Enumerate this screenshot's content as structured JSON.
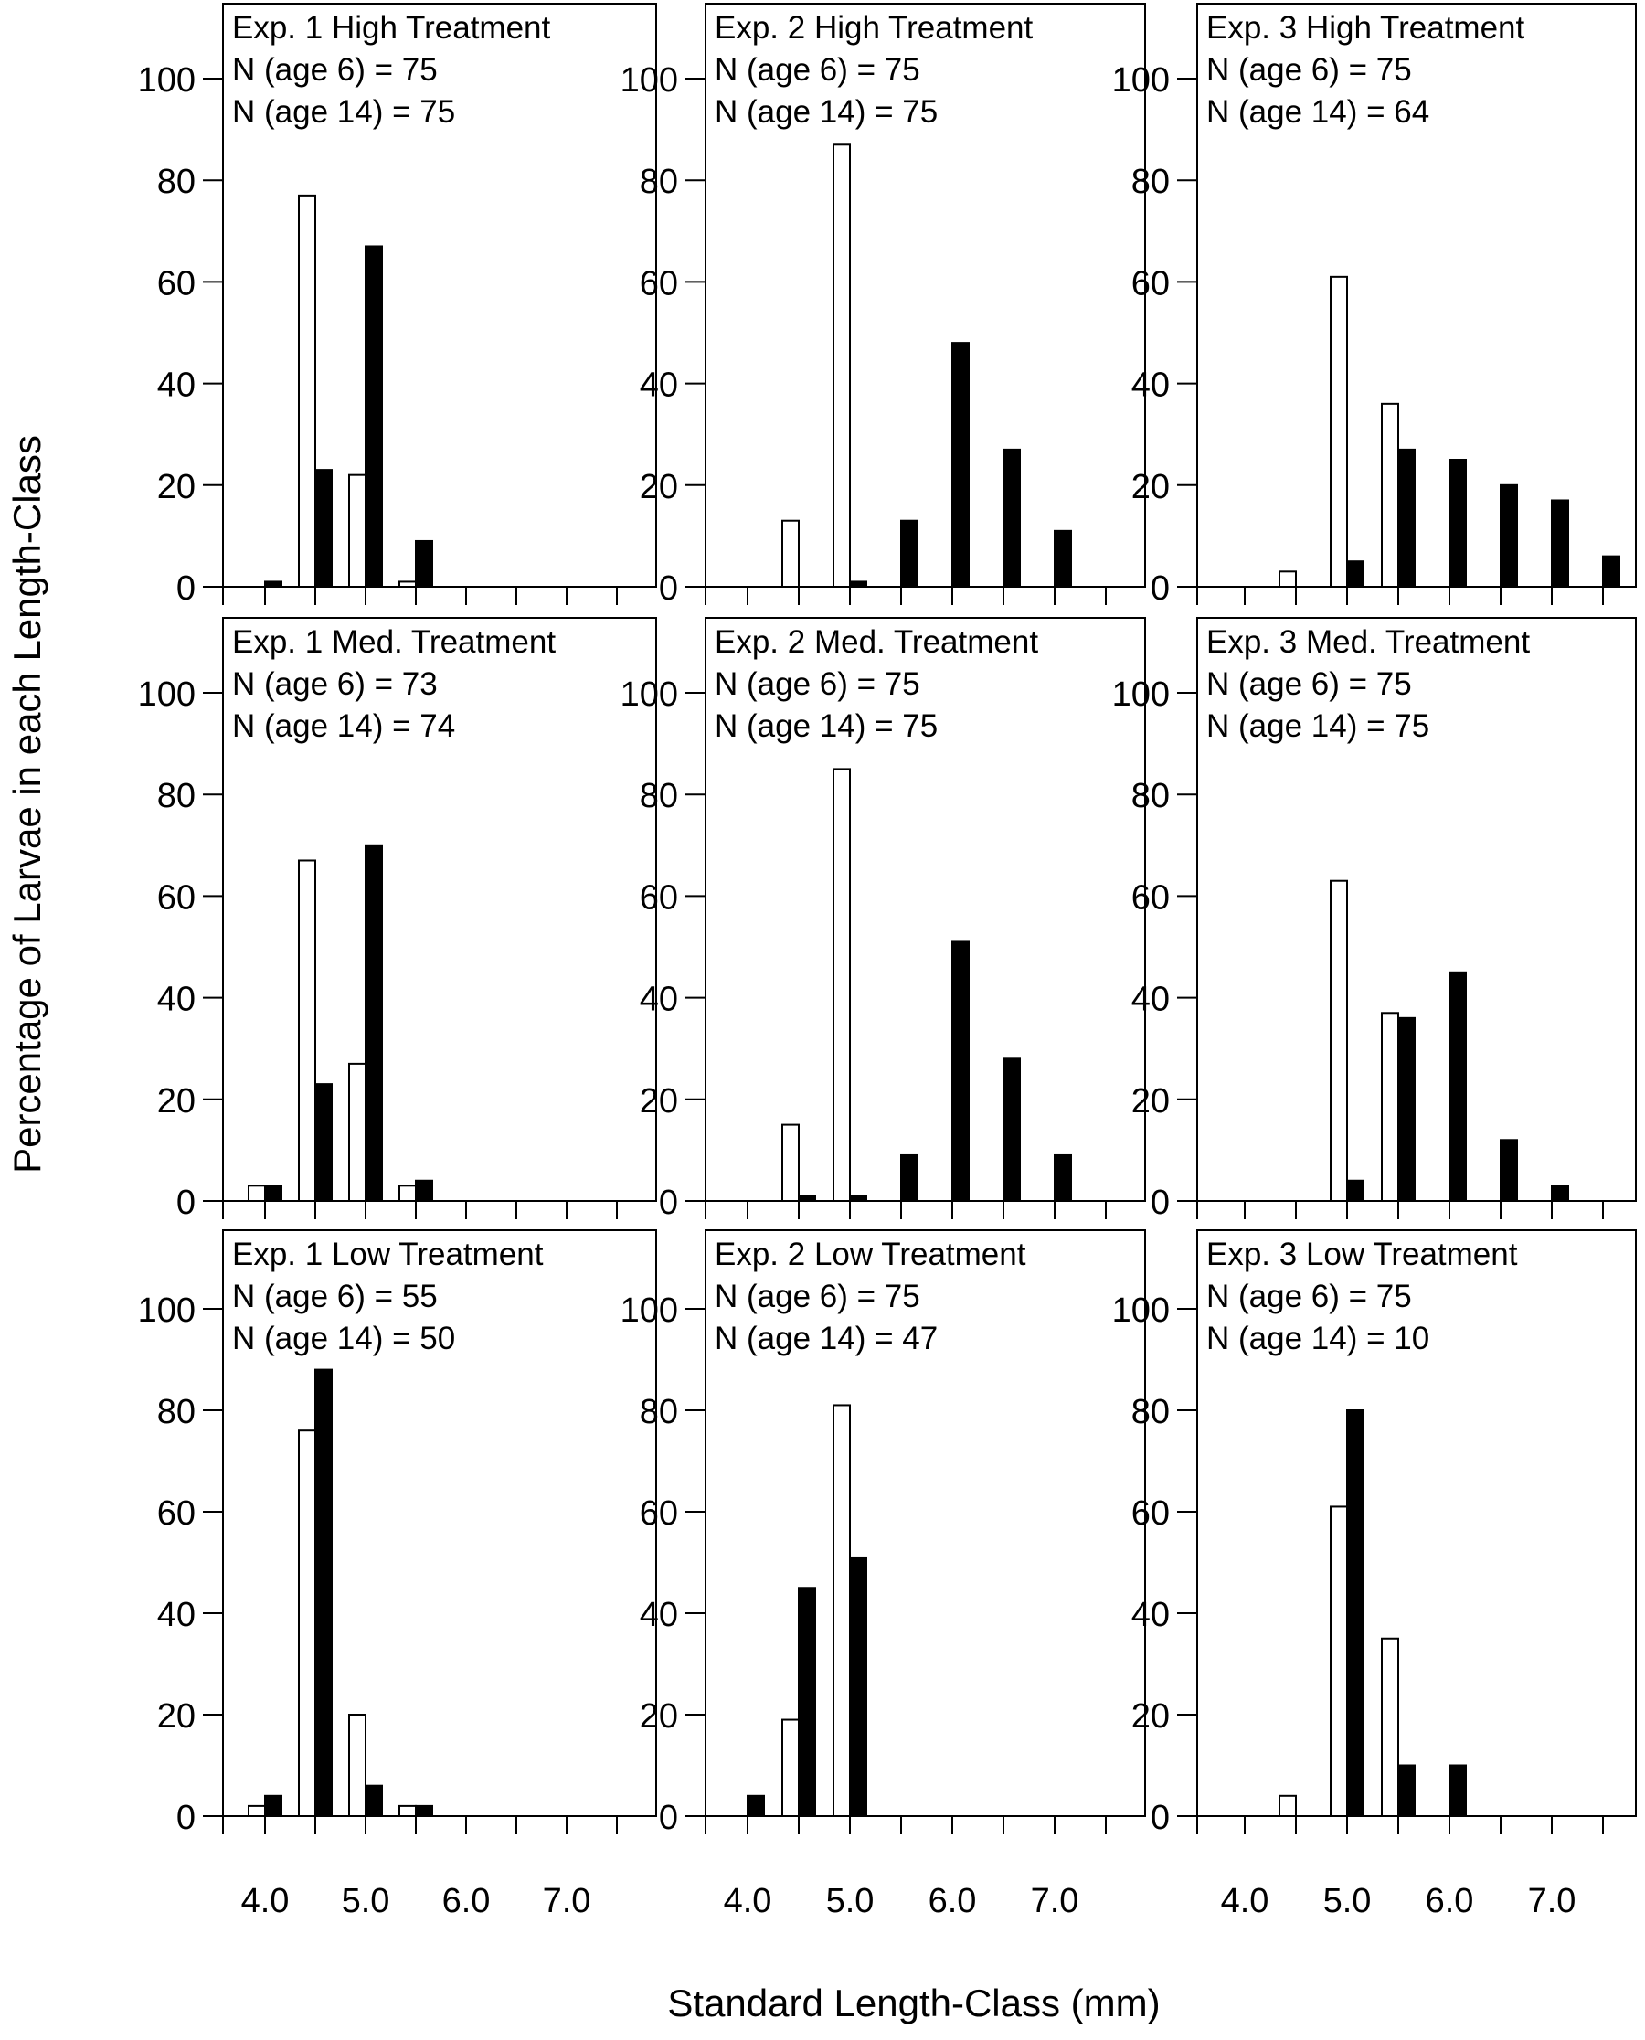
{
  "figure": {
    "ylabel": "Percentage of Larvae in each Length-Class",
    "xlabel": "Standard Length-Class (mm)"
  },
  "chart_data": [
    {
      "type": "bar",
      "title": "Exp. 1  High Treatment",
      "n_age6": "N (age 6) = 75",
      "n_age14": "N (age 14) = 75",
      "x_tick_labels": [
        "4.0",
        "5.0",
        "6.0",
        "7.0"
      ],
      "y_tick_labels": [
        "0",
        "20",
        "40",
        "60",
        "80",
        "100"
      ],
      "ylim": [
        0,
        110
      ],
      "age6": [
        [
          4.0,
          0
        ],
        [
          4.5,
          77
        ],
        [
          5.0,
          22
        ],
        [
          5.5,
          1
        ]
      ],
      "age14": [
        [
          4.0,
          1
        ],
        [
          4.5,
          23
        ],
        [
          5.0,
          67
        ],
        [
          5.5,
          9
        ]
      ]
    },
    {
      "type": "bar",
      "title": "Exp. 2 High Treatment",
      "n_age6": "N (age 6) = 75",
      "n_age14": "N (age 14) = 75",
      "x_tick_labels": [
        "4.0",
        "5.0",
        "6.0",
        "7.0"
      ],
      "y_tick_labels": [
        "0",
        "20",
        "40",
        "60",
        "80",
        "100"
      ],
      "ylim": [
        0,
        110
      ],
      "age6": [
        [
          4.5,
          13
        ],
        [
          5.0,
          87
        ]
      ],
      "age14": [
        [
          5.0,
          1
        ],
        [
          5.5,
          13
        ],
        [
          6.0,
          48
        ],
        [
          6.5,
          27
        ],
        [
          7.0,
          11
        ]
      ]
    },
    {
      "type": "bar",
      "title": "Exp. 3 High Treatment",
      "n_age6": "N (age 6) = 75",
      "n_age14": "N (age 14) = 64",
      "x_tick_labels": [
        "4.0",
        "5.0",
        "6.0",
        "7.0"
      ],
      "y_tick_labels": [
        "0",
        "20",
        "40",
        "60",
        "80",
        "100"
      ],
      "ylim": [
        0,
        110
      ],
      "age6": [
        [
          4.5,
          3
        ],
        [
          5.0,
          61
        ],
        [
          5.5,
          36
        ]
      ],
      "age14": [
        [
          5.0,
          5
        ],
        [
          5.5,
          27
        ],
        [
          6.0,
          25
        ],
        [
          6.5,
          20
        ],
        [
          7.0,
          17
        ],
        [
          7.5,
          6
        ]
      ]
    },
    {
      "type": "bar",
      "title": "Exp. 1 Med. Treatment",
      "n_age6": "N (age 6) = 73",
      "n_age14": "N (age 14) = 74",
      "x_tick_labels": [
        "4.0",
        "5.0",
        "6.0",
        "7.0"
      ],
      "y_tick_labels": [
        "0",
        "20",
        "40",
        "60",
        "80",
        "100"
      ],
      "ylim": [
        0,
        110
      ],
      "age6": [
        [
          4.0,
          3
        ],
        [
          4.5,
          67
        ],
        [
          5.0,
          27
        ],
        [
          5.5,
          3
        ]
      ],
      "age14": [
        [
          4.0,
          3
        ],
        [
          4.5,
          23
        ],
        [
          5.0,
          70
        ],
        [
          5.5,
          4
        ]
      ]
    },
    {
      "type": "bar",
      "title": "Exp. 2 Med. Treatment",
      "n_age6": "N (age 6) = 75",
      "n_age14": "N (age 14) = 75",
      "x_tick_labels": [
        "4.0",
        "5.0",
        "6.0",
        "7.0"
      ],
      "y_tick_labels": [
        "0",
        "20",
        "40",
        "60",
        "80",
        "100"
      ],
      "ylim": [
        0,
        110
      ],
      "age6": [
        [
          4.5,
          15
        ],
        [
          5.0,
          85
        ]
      ],
      "age14": [
        [
          4.5,
          1
        ],
        [
          5.0,
          1
        ],
        [
          5.5,
          9
        ],
        [
          6.0,
          51
        ],
        [
          6.5,
          28
        ],
        [
          7.0,
          9
        ]
      ]
    },
    {
      "type": "bar",
      "title": "Exp. 3 Med. Treatment",
      "n_age6": "N (age 6) = 75",
      "n_age14": "N (age 14) = 75",
      "x_tick_labels": [
        "4.0",
        "5.0",
        "6.0",
        "7.0"
      ],
      "y_tick_labels": [
        "0",
        "20",
        "40",
        "60",
        "80",
        "100"
      ],
      "ylim": [
        0,
        110
      ],
      "age6": [
        [
          5.0,
          63
        ],
        [
          5.5,
          37
        ]
      ],
      "age14": [
        [
          5.0,
          4
        ],
        [
          5.5,
          36
        ],
        [
          6.0,
          45
        ],
        [
          6.5,
          12
        ],
        [
          7.0,
          3
        ]
      ]
    },
    {
      "type": "bar",
      "title": "Exp. 1 Low Treatment",
      "n_age6": "N (age 6) = 55",
      "n_age14": "N (age 14) = 50",
      "x_tick_labels": [
        "4.0",
        "5.0",
        "6.0",
        "7.0"
      ],
      "y_tick_labels": [
        "0",
        "20",
        "40",
        "60",
        "80",
        "100"
      ],
      "ylim": [
        0,
        110
      ],
      "age6": [
        [
          4.0,
          2
        ],
        [
          4.5,
          76
        ],
        [
          5.0,
          20
        ],
        [
          5.5,
          2
        ]
      ],
      "age14": [
        [
          4.0,
          4
        ],
        [
          4.5,
          88
        ],
        [
          5.0,
          6
        ],
        [
          5.5,
          2
        ]
      ]
    },
    {
      "type": "bar",
      "title": "Exp. 2 Low Treatment",
      "n_age6": "N (age 6) = 75",
      "n_age14": "N (age 14) = 47",
      "x_tick_labels": [
        "4.0",
        "5.0",
        "6.0",
        "7.0"
      ],
      "y_tick_labels": [
        "0",
        "20",
        "40",
        "60",
        "80",
        "100"
      ],
      "ylim": [
        0,
        110
      ],
      "age6": [
        [
          4.5,
          19
        ],
        [
          5.0,
          81
        ]
      ],
      "age14": [
        [
          4.0,
          4
        ],
        [
          4.5,
          45
        ],
        [
          5.0,
          51
        ]
      ]
    },
    {
      "type": "bar",
      "title": "Exp. 3 Low Treatment",
      "n_age6": "N (age 6) = 75",
      "n_age14": "N (age 14) = 10",
      "x_tick_labels": [
        "4.0",
        "5.0",
        "6.0",
        "7.0"
      ],
      "y_tick_labels": [
        "0",
        "20",
        "40",
        "60",
        "80",
        "100"
      ],
      "ylim": [
        0,
        110
      ],
      "age6": [
        [
          4.5,
          4
        ],
        [
          5.0,
          61
        ],
        [
          5.5,
          35
        ]
      ],
      "age14": [
        [
          5.0,
          80
        ],
        [
          5.5,
          10
        ],
        [
          6.0,
          10
        ]
      ]
    }
  ]
}
